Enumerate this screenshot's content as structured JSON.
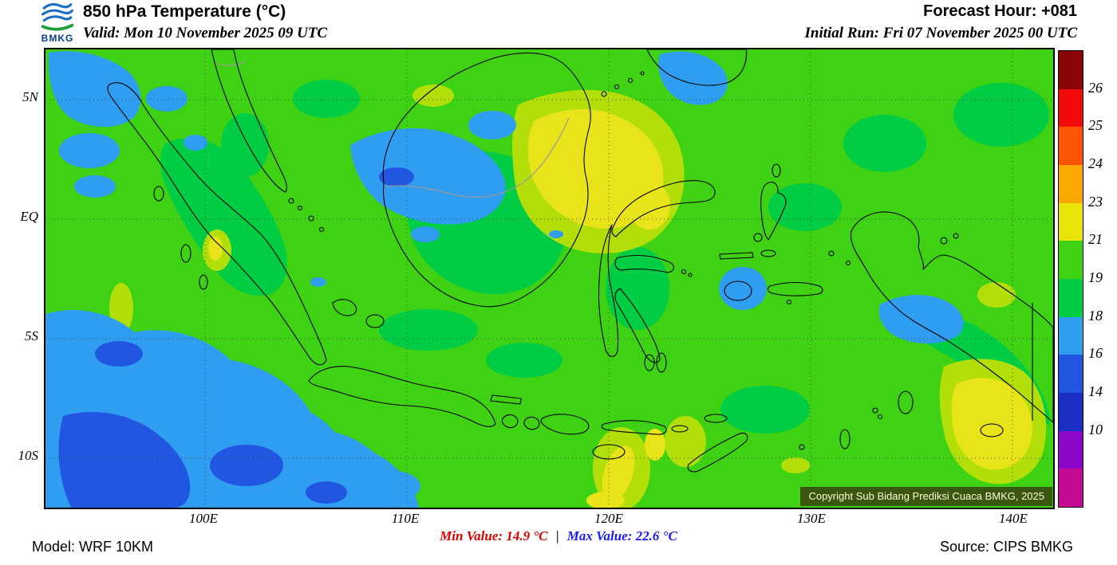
{
  "header": {
    "logo": "BMKG",
    "title": "850 hPa Temperature (°C)",
    "valid": "Valid: Mon 10 November 2025 09 UTC",
    "forecast_hour": "Forecast Hour: +081",
    "initial_run": "Initial Run: Fri 07 November 2025 00 UTC"
  },
  "map": {
    "lat_labels": [
      "5N",
      "EQ",
      "5S",
      "10S"
    ],
    "lon_labels": [
      "100E",
      "110E",
      "120E",
      "130E",
      "140E"
    ],
    "copyright": "Copyright Sub Bidang Prediksi Cuaca BMKG, 2025"
  },
  "colorbar": {
    "tick_labels": [
      "26",
      "25",
      "24",
      "23",
      "21",
      "19",
      "18",
      "16",
      "14",
      "10"
    ],
    "segments": [
      "#8a0505",
      "#f20a0a",
      "#fc5404",
      "#fca803",
      "#ebe40a",
      "#3fd214",
      "#00cc44",
      "#2f9df0",
      "#2157e0",
      "#1b2ec4",
      "#8a06c8",
      "#c40a94"
    ]
  },
  "footer": {
    "model": "Model: WRF 10KM",
    "min_label": "Min Value:",
    "min_value": "14.9 °C",
    "separator": "|",
    "max_label": "Max Value:",
    "max_value": "22.6 °C",
    "source": "Source: CIPS BMKG"
  },
  "colors": {
    "green": "#3fd214",
    "green2": "#00cc44",
    "ygreen": "#b2df0a",
    "yellow": "#e9e41a",
    "lblue": "#2f9df0",
    "blue": "#2157e0",
    "minred": "#e00000",
    "maxblue": "#1a1aff",
    "logoblue": "#1a6fc4",
    "logogreen": "#1f9e3a",
    "cbg": "rgba(58,66,12,0.85)"
  }
}
